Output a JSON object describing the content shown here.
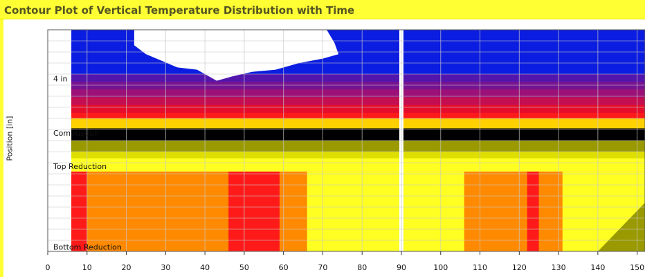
{
  "title": "Contour Plot of Vertical Temperature Distribution with Time",
  "colors": {
    "title_bar": "#ffff33",
    "cold": "#0b1de0",
    "red": "#ff1a1a",
    "orange": "#ff8a00",
    "yellow": "#ffff22",
    "olive": "#9a9a00",
    "black": "#000000"
  },
  "chart_data": {
    "type": "heatmap",
    "title": "Contour Plot of Vertical Temperature Distribution with Time",
    "xlabel": "",
    "ylabel": "Position [in]",
    "xlim": [
      0,
      152
    ],
    "x_ticks": [
      0,
      10,
      20,
      30,
      40,
      50,
      60,
      70,
      80,
      90,
      100,
      110,
      120,
      130,
      140,
      150
    ],
    "grid": true,
    "position_labels": [
      {
        "label": "4 in",
        "level": 0.78
      },
      {
        "label": "Combustion",
        "level": 0.535
      },
      {
        "label": "Top Reduction",
        "level": 0.385
      },
      {
        "label": "Bottom Reduction",
        "level": 0.02
      }
    ],
    "data_start_x": 6,
    "gap_at_x": 90,
    "bands": [
      {
        "zone": "top",
        "from": 0.8,
        "to": 1.0,
        "color": "cold"
      },
      {
        "zone": "upper-middle",
        "from": 0.6,
        "to": 0.8,
        "color": "red"
      },
      {
        "zone": "combustion",
        "from": 0.45,
        "to": 0.6,
        "color": "black"
      },
      {
        "zone": "transition",
        "from": 0.36,
        "to": 0.45,
        "color": "yellow"
      },
      {
        "zone": "reduction",
        "from": 0.0,
        "to": 0.36,
        "color": "orange"
      }
    ],
    "reduction_zone_segments": [
      {
        "x": [
          6,
          10
        ],
        "color": "red"
      },
      {
        "x": [
          10,
          46
        ],
        "color": "orange"
      },
      {
        "x": [
          46,
          59
        ],
        "color": "red"
      },
      {
        "x": [
          59,
          66
        ],
        "color": "orange"
      },
      {
        "x": [
          66,
          106
        ],
        "color": "yellow"
      },
      {
        "x": [
          106,
          122
        ],
        "color": "orange"
      },
      {
        "x": [
          122,
          125
        ],
        "color": "red"
      },
      {
        "x": [
          125,
          131
        ],
        "color": "orange"
      },
      {
        "x": [
          131,
          152
        ],
        "color": "yellow"
      }
    ]
  }
}
